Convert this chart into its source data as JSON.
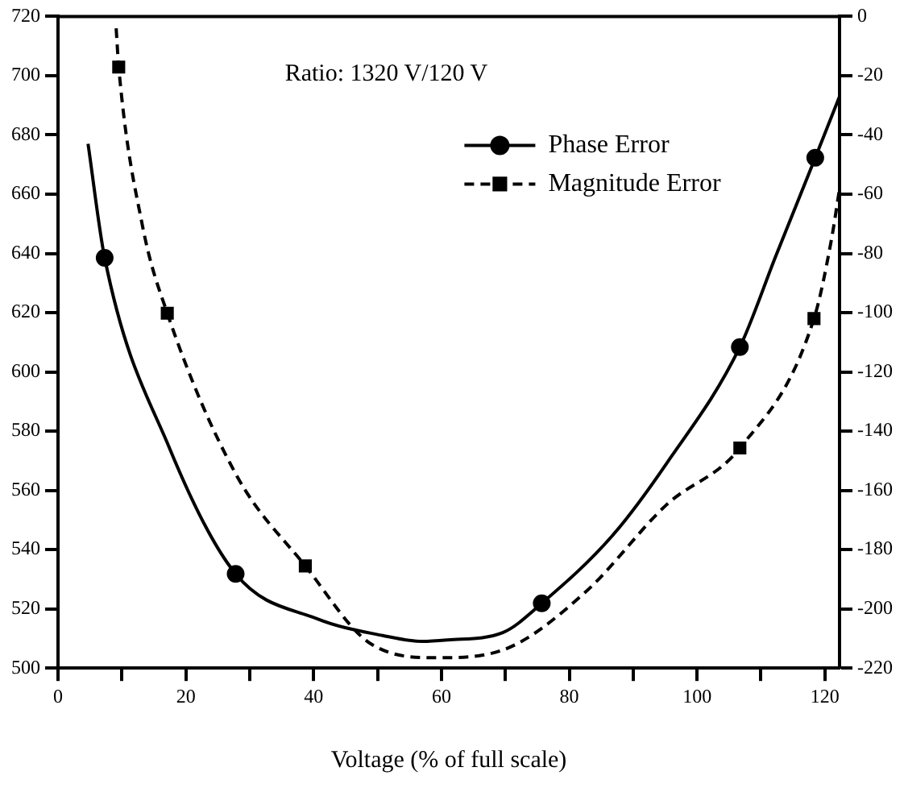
{
  "chart_data": {
    "type": "line",
    "xlabel": "Voltage (% of full scale)",
    "annotations": [
      "Ratio: 1320 V/120 V"
    ],
    "xlim": [
      0,
      122.3
    ],
    "xticks": [
      0,
      {
        "value": 10,
        "label": null
      },
      20,
      {
        "value": 30,
        "label": null
      },
      40,
      {
        "value": 50,
        "label": null
      },
      60,
      {
        "value": 70,
        "label": null
      },
      80,
      {
        "value": 90,
        "label": null
      },
      100,
      {
        "value": 110,
        "label": null
      },
      120
    ],
    "ylim": [
      500,
      720
    ],
    "yticks": [
      500,
      520,
      540,
      560,
      580,
      600,
      620,
      640,
      660,
      680,
      700,
      720
    ],
    "y2lim": [
      -220,
      0
    ],
    "y2ticks": [
      -220,
      -200,
      -180,
      -160,
      -140,
      -120,
      -100,
      -80,
      -60,
      -40,
      -20,
      0
    ],
    "grid": false,
    "legend": "top right",
    "series": [
      {
        "name": "Phase Error",
        "color": "#000000",
        "axis": "y",
        "marker": "none",
        "line_style": "solid",
        "x": [
          4.7,
          7.3,
          17.5,
          27.8,
          40.6,
          50.8,
          57,
          61,
          69.6,
          75.7,
          86.7,
          95.2,
          106.7,
          112.3,
          118.5,
          122.3
        ],
        "values": [
          677,
          638.5,
          574,
          531.8,
          516.6,
          511,
          509,
          509.5,
          512,
          521.9,
          544.6,
          569,
          608.4,
          639,
          672.3,
          693
        ]
      },
      {
        "type": "scatter",
        "color": "#000000",
        "axis": "y",
        "marker": "circle",
        "x": [
          7.3,
          27.8,
          75.7,
          106.7,
          118.5
        ],
        "values": [
          638.5,
          531.8,
          521.9,
          608.4,
          672.3
        ]
      },
      {
        "name": "Magnitude Error",
        "color": "#000000",
        "axis": "y2",
        "marker": "none",
        "line_style": "dashed",
        "x": [
          9.1,
          9.5,
          13.2,
          17.1,
          27.8,
          38.7,
          49.1,
          59.4,
          69.6,
          82.4,
          95.2,
          106.7,
          118.3,
          121,
          122.3
        ],
        "values": [
          -4,
          -17.1,
          -70.5,
          -100.2,
          -154.4,
          -185.5,
          -212,
          -216.5,
          -213.9,
          -194.6,
          -164.9,
          -145.7,
          -102,
          -75.7,
          -58.2
        ]
      },
      {
        "type": "scatter",
        "color": "#000000",
        "axis": "y2",
        "marker": "square",
        "x": [
          9.5,
          17.1,
          38.7,
          106.7,
          118.3
        ],
        "values": [
          -17.1,
          -100.2,
          -185.5,
          -145.7,
          -102
        ]
      }
    ]
  }
}
